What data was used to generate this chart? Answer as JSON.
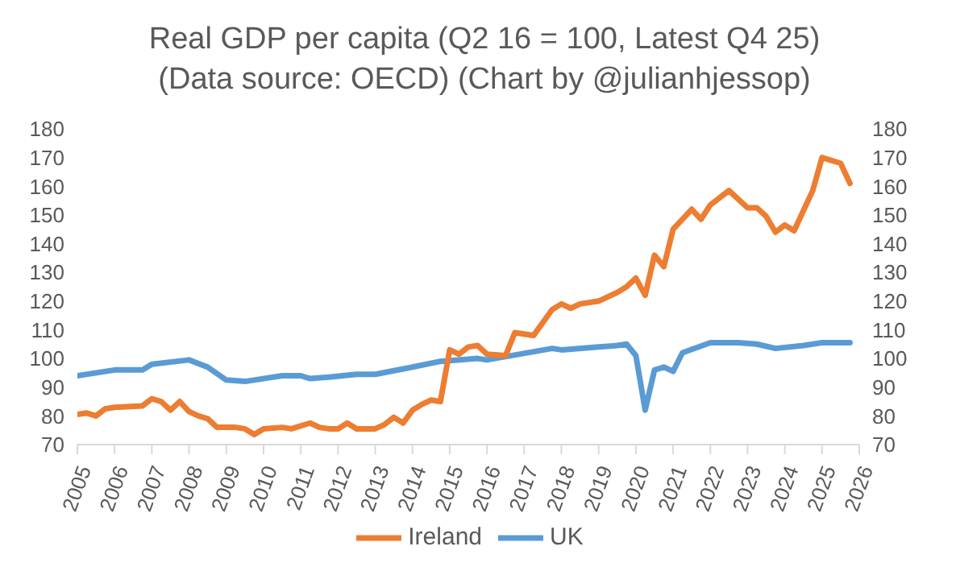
{
  "chart_data": {
    "type": "line",
    "title": "Real GDP per capita (Q2 16 = 100, Latest Q4 25)",
    "subtitle": "(Data source: OECD) (Chart by @julianhjessop)",
    "xlim": [
      2005,
      2026
    ],
    "xticks": [
      2005,
      2006,
      2007,
      2008,
      2009,
      2010,
      2011,
      2012,
      2013,
      2014,
      2015,
      2016,
      2017,
      2018,
      2019,
      2020,
      2021,
      2022,
      2023,
      2024,
      2025,
      2026
    ],
    "ylim": [
      70,
      180
    ],
    "yticks": [
      70,
      80,
      90,
      100,
      110,
      120,
      130,
      140,
      150,
      160,
      170,
      180
    ],
    "y2lim": [
      70,
      180
    ],
    "y2ticks": [
      70,
      80,
      90,
      100,
      110,
      120,
      130,
      140,
      150,
      160,
      170,
      180
    ],
    "grid": false,
    "legend": "bottom",
    "marker": "none",
    "line_style": "solid",
    "series": [
      {
        "name": "UK",
        "color": "#5b9bd5",
        "x": [
          2005,
          2006,
          2006.75,
          2007,
          2008,
          2008.5,
          2009,
          2009.5,
          2010.5,
          2011,
          2011.25,
          2011.75,
          2012.5,
          2013,
          2014,
          2014.75,
          2015.75,
          2016,
          2017.75,
          2018,
          2019,
          2019.5,
          2019.75,
          2020,
          2020.25,
          2020.5,
          2020.75,
          2021,
          2021.25,
          2022,
          2022.75,
          2023.25,
          2023.75,
          2024.5,
          2025,
          2025.75
        ],
        "values": [
          94,
          96,
          96,
          98,
          99.5,
          97,
          92.5,
          92,
          94,
          94,
          93,
          93.5,
          94.5,
          94.5,
          97,
          99,
          100,
          99.5,
          103.5,
          103,
          104,
          104.5,
          105,
          101,
          82,
          96,
          97,
          95.5,
          102,
          105.5,
          105.5,
          105,
          103.5,
          104.5,
          105.5,
          105.5
        ]
      },
      {
        "name": "Ireland",
        "color": "#ed7d31",
        "x": [
          2005,
          2005.25,
          2005.5,
          2005.75,
          2006,
          2006.75,
          2007,
          2007.25,
          2007.5,
          2007.75,
          2008,
          2008.25,
          2008.5,
          2008.75,
          2009.25,
          2009.5,
          2009.75,
          2010,
          2010.5,
          2010.75,
          2011.25,
          2011.5,
          2011.75,
          2012,
          2012.25,
          2012.5,
          2013,
          2013.25,
          2013.5,
          2013.75,
          2014,
          2014.25,
          2014.5,
          2014.75,
          2015,
          2015.25,
          2015.5,
          2015.75,
          2016,
          2016.5,
          2016.75,
          2017.25,
          2017.75,
          2018,
          2018.25,
          2018.5,
          2019,
          2019.5,
          2019.75,
          2020,
          2020.25,
          2020.5,
          2020.75,
          2021,
          2021.5,
          2021.75,
          2022,
          2022.5,
          2023,
          2023.25,
          2023.5,
          2023.75,
          2024,
          2024.25,
          2024.75,
          2025,
          2025.5,
          2025.75
        ],
        "values": [
          80.5,
          81,
          80,
          82.5,
          83,
          83.5,
          86,
          85,
          82,
          85,
          81.5,
          80,
          79,
          76,
          76,
          75.5,
          73.5,
          75.5,
          76,
          75.5,
          77.5,
          76,
          75.5,
          75.5,
          77.5,
          75.5,
          75.5,
          77,
          79.5,
          77.5,
          82,
          84,
          85.5,
          85,
          103,
          101.5,
          104,
          104.5,
          101.5,
          101,
          109,
          108,
          117,
          119,
          117.5,
          119,
          120,
          123,
          125,
          128,
          122,
          136,
          132,
          145,
          152,
          148.5,
          153.5,
          158.5,
          152.5,
          152.5,
          149.5,
          144,
          146.5,
          144.5,
          158.5,
          170,
          168,
          161
        ]
      }
    ]
  }
}
